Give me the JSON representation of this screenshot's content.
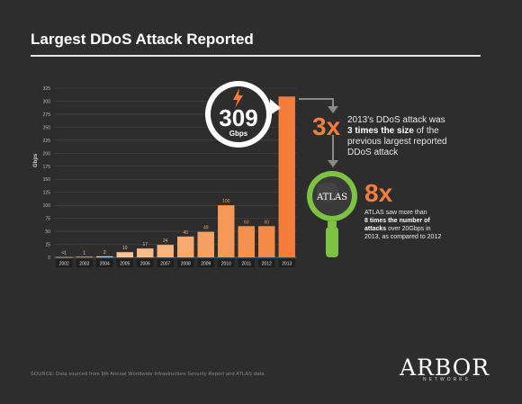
{
  "title": "Largest DDoS Attack Reported",
  "chart_data": {
    "type": "bar",
    "ylabel": "Gbps",
    "ylim": [
      0,
      325
    ],
    "yticks": [
      0,
      25,
      50,
      75,
      100,
      125,
      150,
      175,
      200,
      225,
      250,
      275,
      300,
      325
    ],
    "categories": [
      "2002",
      "2003",
      "2004",
      "2005",
      "2006",
      "2007",
      "2008",
      "2009",
      "2010",
      "2011",
      "2012",
      "2013"
    ],
    "values": [
      0.5,
      1,
      2,
      10,
      17,
      24,
      40,
      49,
      100,
      60,
      60,
      309
    ],
    "data_labels": [
      "<1",
      "1",
      "2",
      "10",
      "17",
      "24",
      "40",
      "49",
      "100",
      "60",
      "60",
      ""
    ],
    "colors": [
      "#fbd6b5",
      "#fbd2ae",
      "#facca4",
      "#f9c598",
      "#f9bd8c",
      "#f8b47e",
      "#f7aa6f",
      "#f6a164",
      "#f59858",
      "#f5914e",
      "#f48a46",
      "#f47d3b"
    ]
  },
  "callout": {
    "value": "309",
    "unit": "Gbps"
  },
  "ratio1": {
    "value": "3x",
    "line1": "2013's DDoS attack was",
    "bold": "3 times the size",
    "line2_rest": " of the",
    "line3": "previous largest reported",
    "line4": "DDoS attack"
  },
  "atlas": {
    "logo": "ATLAS",
    "value": "8x",
    "line1": "ATLAS saw more than",
    "bold1": "8 times the number of",
    "bold2": "attacks",
    "line3_rest": " over 20Gbps in",
    "line4": "2013, as compared to 2012"
  },
  "source": "SOURCE: Data sourced from 9th Annual Worldwide Infrastructure Security Report and ATLAS data.",
  "brand": {
    "name": "ARBOR",
    "sub": "NETWORKS"
  },
  "colors": {
    "accent": "#f47d3b",
    "green": "#7dc242",
    "background": "#2d2d2d"
  }
}
